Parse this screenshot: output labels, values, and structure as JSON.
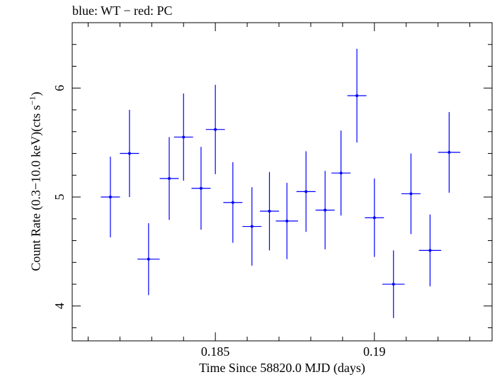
{
  "chart_data": {
    "type": "scatter",
    "title": "blue: WT − red: PC",
    "xlabel": "Time Since 58820.0 MJD (days)",
    "ylabel": {
      "prefix": "Count Rate (0.3−10.0 keV)(cts s",
      "superscript": "−1",
      "suffix": ")"
    },
    "xlim": [
      0.1805,
      0.1937
    ],
    "ylim": [
      3.68,
      6.6
    ],
    "x_major_ticks": [
      0.185,
      0.19
    ],
    "x_tick_labels": [
      "0.185",
      "0.19"
    ],
    "x_minor_step": 0.001,
    "y_major_ticks": [
      4,
      5,
      6
    ],
    "y_tick_labels": [
      "4",
      "5",
      "6"
    ],
    "y_minor_step": 0.2,
    "series": [
      {
        "color": "#0000ff",
        "points": [
          {
            "x": 0.1817,
            "y": 5.0,
            "xerr": 0.0003,
            "yerr": 0.37
          },
          {
            "x": 0.1823,
            "y": 5.4,
            "xerr": 0.0003,
            "yerr": 0.4
          },
          {
            "x": 0.1829,
            "y": 4.43,
            "xerr": 0.00035,
            "yerr": 0.33
          },
          {
            "x": 0.18355,
            "y": 5.17,
            "xerr": 0.0003,
            "yerr": 0.38
          },
          {
            "x": 0.184,
            "y": 5.55,
            "xerr": 0.0003,
            "yerr": 0.4
          },
          {
            "x": 0.18455,
            "y": 5.08,
            "xerr": 0.0003,
            "yerr": 0.38
          },
          {
            "x": 0.185,
            "y": 5.62,
            "xerr": 0.0003,
            "yerr": 0.41
          },
          {
            "x": 0.18555,
            "y": 4.95,
            "xerr": 0.0003,
            "yerr": 0.37
          },
          {
            "x": 0.18615,
            "y": 4.73,
            "xerr": 0.0003,
            "yerr": 0.36
          },
          {
            "x": 0.1867,
            "y": 4.87,
            "xerr": 0.0003,
            "yerr": 0.36
          },
          {
            "x": 0.18725,
            "y": 4.78,
            "xerr": 0.00035,
            "yerr": 0.35
          },
          {
            "x": 0.18785,
            "y": 5.05,
            "xerr": 0.0003,
            "yerr": 0.37
          },
          {
            "x": 0.18845,
            "y": 4.88,
            "xerr": 0.0003,
            "yerr": 0.36
          },
          {
            "x": 0.18895,
            "y": 5.22,
            "xerr": 0.0003,
            "yerr": 0.39
          },
          {
            "x": 0.18945,
            "y": 5.93,
            "xerr": 0.0003,
            "yerr": 0.43
          },
          {
            "x": 0.19,
            "y": 4.81,
            "xerr": 0.0003,
            "yerr": 0.36
          },
          {
            "x": 0.1906,
            "y": 4.2,
            "xerr": 0.00035,
            "yerr": 0.31
          },
          {
            "x": 0.19115,
            "y": 5.03,
            "xerr": 0.0003,
            "yerr": 0.37
          },
          {
            "x": 0.19175,
            "y": 4.51,
            "xerr": 0.00035,
            "yerr": 0.33
          },
          {
            "x": 0.19235,
            "y": 5.41,
            "xerr": 0.00035,
            "yerr": 0.37
          }
        ]
      }
    ],
    "grid": false,
    "legend": "none"
  }
}
